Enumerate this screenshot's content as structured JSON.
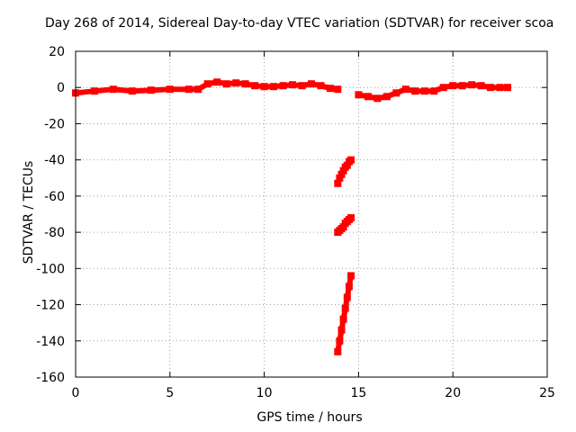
{
  "chart_data": {
    "type": "scatter",
    "title": "Day 268 of 2014, Sidereal Day-to-day VTEC variation (SDTVAR) for receiver scoa",
    "xlabel": "GPS time / hours",
    "ylabel": "SDTVAR / TECUs",
    "xlim": [
      0,
      25
    ],
    "ylim": [
      -160,
      20
    ],
    "xticks": [
      "0",
      "5",
      "10",
      "15",
      "20",
      "25"
    ],
    "yticks": [
      "20",
      "0",
      "-20",
      "-40",
      "-60",
      "-80",
      "-100",
      "-120",
      "-140",
      "-160"
    ],
    "grid": true,
    "legend": "none",
    "marker_color": "#ff0000",
    "series": [
      {
        "x": [
          0.0,
          1.0,
          2.0,
          3.0,
          4.0,
          5.0,
          6.0,
          6.5,
          7.0,
          7.5,
          8.0,
          8.5,
          9.0,
          9.5,
          10.0,
          10.5,
          11.0,
          11.5,
          12.0,
          12.5,
          13.0,
          13.5,
          13.9
        ],
        "y": [
          -3,
          -2,
          -1,
          -2,
          -1.5,
          -1,
          -1,
          -1,
          2,
          3,
          2,
          2.5,
          2,
          1,
          0.5,
          0.5,
          1,
          1.5,
          1,
          2,
          1,
          -0.5,
          -1
        ]
      },
      {
        "x": [
          15.0,
          15.5,
          16.0,
          16.5,
          17.0,
          17.5,
          18.0,
          18.5,
          19.0,
          19.5,
          20.0,
          20.5,
          21.0,
          21.5,
          22.0,
          22.5,
          22.9
        ],
        "y": [
          -4,
          -5,
          -6,
          -5,
          -3,
          -1,
          -2,
          -2,
          -2,
          0,
          1,
          1,
          1.5,
          1,
          0,
          0,
          0
        ]
      },
      {
        "x": [
          13.9,
          14.0,
          14.1,
          14.2,
          14.3,
          14.4,
          14.5,
          14.6
        ],
        "y": [
          -53,
          -50,
          -48,
          -46,
          -44,
          -43,
          -41,
          -40
        ]
      },
      {
        "x": [
          13.9,
          14.0,
          14.1,
          14.2,
          14.3,
          14.4,
          14.5,
          14.6
        ],
        "y": [
          -80,
          -79,
          -78,
          -77,
          -75,
          -74,
          -73,
          -72
        ]
      },
      {
        "x": [
          13.9,
          14.0,
          14.1,
          14.2,
          14.3,
          14.4,
          14.5,
          14.6
        ],
        "y": [
          -146,
          -140,
          -134,
          -128,
          -122,
          -116,
          -110,
          -104
        ]
      }
    ]
  }
}
